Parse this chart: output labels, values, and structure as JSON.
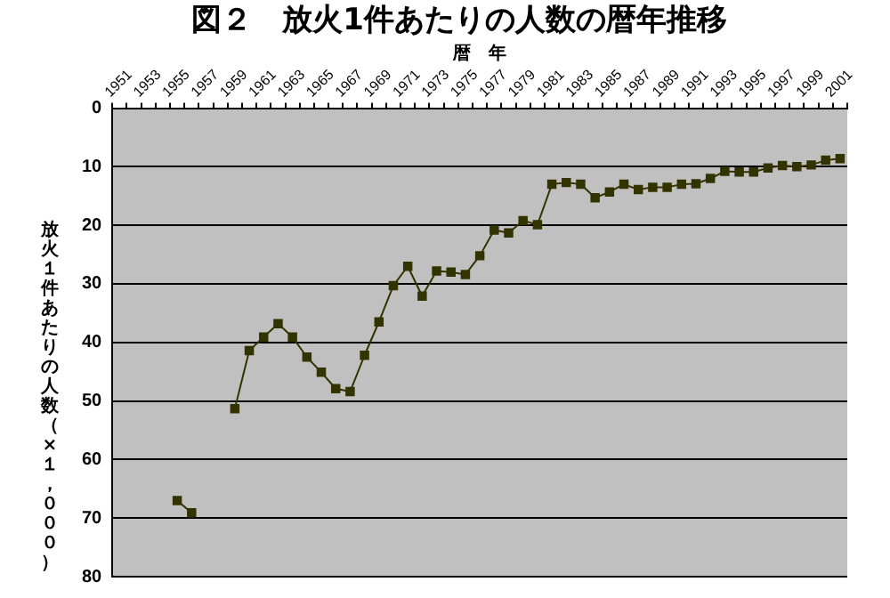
{
  "chart_data": {
    "type": "line",
    "title": "図２　放火1件あたりの人数の暦年推移",
    "xlabel": "暦　年",
    "ylabel": "放火１件あたりの人数（×１，０００）",
    "categories": [
      "1951",
      null,
      "1953",
      null,
      "1955",
      null,
      "1957",
      null,
      "1959",
      null,
      "1961",
      null,
      "1963",
      null,
      "1965",
      null,
      "1967",
      null,
      "1969",
      null,
      "1971",
      null,
      "1973",
      null,
      "1975",
      null,
      "1977",
      null,
      "1979",
      null,
      "1981",
      null,
      "1983",
      null,
      "1985",
      null,
      "1987",
      null,
      "1989",
      null,
      "1991",
      null,
      "1993",
      null,
      "1995",
      null,
      "1997",
      null,
      "1999",
      null,
      "2001"
    ],
    "series": [
      {
        "color": "#333300",
        "values": [
          null,
          null,
          null,
          null,
          67.0,
          69.1,
          null,
          null,
          51.3,
          41.4,
          39.1,
          36.8,
          39.1,
          42.5,
          45.1,
          47.9,
          48.4,
          42.2,
          36.5,
          30.3,
          27.0,
          32.1,
          27.8,
          28.0,
          28.4,
          25.2,
          20.8,
          21.3,
          19.2,
          19.9,
          13.0,
          12.7,
          13.0,
          15.3,
          14.3,
          13.0,
          13.9,
          13.5,
          13.5,
          13.0,
          12.9,
          12.0,
          10.8,
          10.9,
          10.9,
          10.2,
          9.8,
          10.0,
          9.7,
          8.9,
          8.6
        ]
      }
    ],
    "ylim": [
      80,
      0
    ],
    "yticks": [
      0,
      10,
      20,
      30,
      40,
      50,
      60,
      70,
      80
    ],
    "grid": "y",
    "legend": false,
    "marker": "square",
    "line_style": "solid"
  }
}
